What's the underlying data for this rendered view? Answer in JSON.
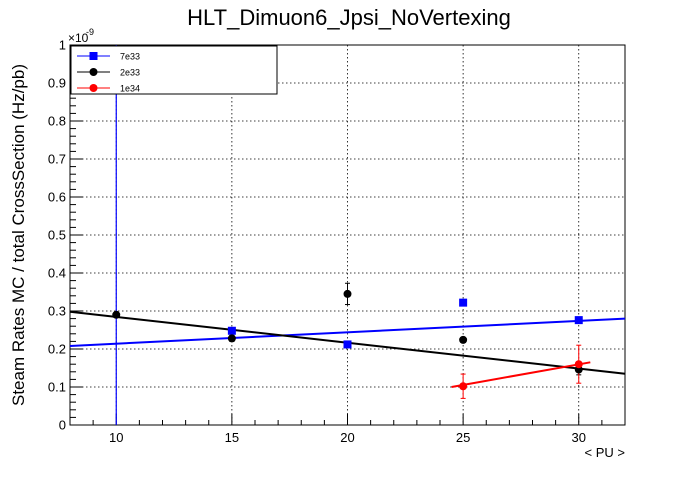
{
  "chart_data": {
    "type": "scatter",
    "title": "HLT_Dimuon6_Jpsi_NoVertexing",
    "xlabel": "< PU >",
    "ylabel": "Steam Rates MC / total CrossSection (Hz/pb)",
    "y_exponent_label": "×10",
    "y_exponent_power": "-9",
    "xlim": [
      8,
      32
    ],
    "ylim": [
      0,
      1
    ],
    "x_ticks": [
      10,
      15,
      20,
      25,
      30
    ],
    "x_tick_labels": [
      "10",
      "15",
      "20",
      "25",
      "30"
    ],
    "y_ticks": [
      0,
      0.1,
      0.2,
      0.3,
      0.4,
      0.5,
      0.6,
      0.7,
      0.8,
      0.9,
      1
    ],
    "y_tick_labels": [
      "0",
      "0.1",
      "0.2",
      "0.3",
      "0.4",
      "0.5",
      "0.6",
      "0.7",
      "0.8",
      "0.9",
      "1"
    ],
    "grid": true,
    "legend_position": "top-left",
    "series": [
      {
        "name": "7e33",
        "color": "#0000ff",
        "marker": "square",
        "points": [
          {
            "x": 10,
            "y": 1.0,
            "err": 0
          },
          {
            "x": 15,
            "y": 0.248,
            "err": 0
          },
          {
            "x": 20,
            "y": 0.212,
            "err": 0
          },
          {
            "x": 25,
            "y": 0.322,
            "err": 0
          },
          {
            "x": 30,
            "y": 0.276,
            "err": 0
          }
        ],
        "errorbar": {
          "x": 10,
          "y_low": 0,
          "y_high": 1.0
        },
        "fit": {
          "x0": 8,
          "y0": 0.208,
          "x1": 32,
          "y1": 0.28
        }
      },
      {
        "name": "2e33",
        "color": "#000000",
        "marker": "circle",
        "points": [
          {
            "x": 10,
            "y": 0.29,
            "err": 0.006
          },
          {
            "x": 15,
            "y": 0.228,
            "err": 0.008
          },
          {
            "x": 20,
            "y": 0.345,
            "err": 0.028
          },
          {
            "x": 25,
            "y": 0.224,
            "err": 0.006
          },
          {
            "x": 30,
            "y": 0.146,
            "err": 0.014
          }
        ],
        "fit": {
          "x0": 8,
          "y0": 0.298,
          "x1": 32,
          "y1": 0.135
        }
      },
      {
        "name": "1e34",
        "color": "#ff0000",
        "marker": "circle",
        "points": [
          {
            "x": 25,
            "y": 0.102,
            "err": 0.032
          },
          {
            "x": 30,
            "y": 0.16,
            "err": 0.05
          }
        ],
        "fit": {
          "x0": 24.5,
          "y0": 0.1,
          "x1": 30.5,
          "y1": 0.165
        }
      }
    ]
  }
}
